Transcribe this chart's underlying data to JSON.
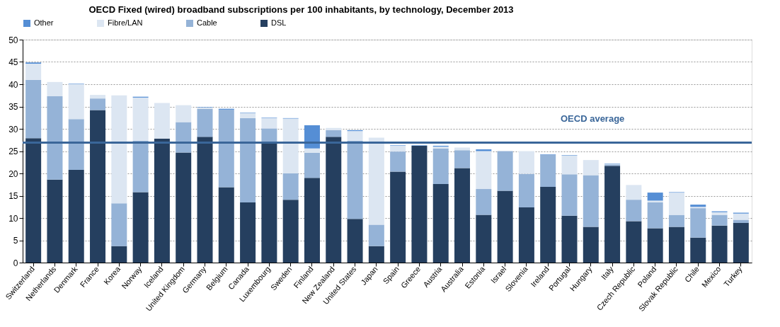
{
  "chart_data": {
    "type": "bar",
    "stacked": true,
    "title": "OECD Fixed (wired) broadband subscriptions per 100 inhabitants, by technology, December 2013",
    "categories": [
      "Switzerland",
      "Netherlands",
      "Denmark",
      "France",
      "Korea",
      "Norway",
      "Iceland",
      "United Kingdom",
      "Germany",
      "Belgium",
      "Canada",
      "Luxembourg",
      "Sweden",
      "Finland",
      "New Zealand",
      "United States",
      "Japan",
      "Spain",
      "Greece",
      "Austria",
      "Australia",
      "Estonia",
      "Israel",
      "Slovenia",
      "Ireland",
      "Portugal",
      "Hungary",
      "Italy",
      "Czech Republic",
      "Poland",
      "Slovak Republic",
      "Chile",
      "Mexico",
      "Turkey"
    ],
    "series": [
      {
        "name": "DSL",
        "color": "#253f5f",
        "values": [
          27.9,
          18.6,
          20.8,
          34.2,
          3.7,
          15.8,
          27.8,
          24.7,
          28.2,
          16.9,
          13.5,
          26.9,
          14.1,
          19.0,
          28.2,
          9.8,
          3.7,
          20.4,
          26.2,
          17.6,
          21.2,
          10.7,
          16.1,
          12.4,
          17.0,
          10.5,
          8.0,
          21.7,
          9.3,
          7.7,
          8.0,
          5.6,
          8.3,
          8.9
        ]
      },
      {
        "name": "Cable",
        "color": "#95b3d7",
        "values": [
          13.1,
          18.7,
          11.4,
          2.6,
          9.6,
          11.5,
          0,
          6.8,
          6.3,
          17.4,
          18.9,
          3.2,
          5.9,
          5.6,
          1.5,
          17.5,
          4.8,
          4.5,
          0,
          8.0,
          4.0,
          5.8,
          8.9,
          7.5,
          7.2,
          9.3,
          11.6,
          0.3,
          4.8,
          5.8,
          2.7,
          6.6,
          2.4,
          0.7
        ]
      },
      {
        "name": "Fibre/LAN",
        "color": "#dce6f2",
        "values": [
          3.6,
          3.2,
          7.8,
          0.8,
          24.2,
          9.7,
          8.0,
          3.8,
          0.3,
          0,
          1.1,
          2.3,
          12.3,
          1.0,
          0.5,
          2.2,
          19.5,
          1.3,
          0,
          0.4,
          0.6,
          8.5,
          0,
          5.1,
          0,
          4.2,
          3.4,
          0.1,
          3.3,
          0.4,
          5.0,
          0.3,
          0.6,
          1.4
        ]
      },
      {
        "name": "Other",
        "color": "#558ed5",
        "values": [
          0.3,
          0,
          0.1,
          0,
          0,
          0.2,
          0,
          0,
          0.1,
          0.2,
          0.1,
          0.1,
          0.1,
          5.2,
          0,
          0.2,
          0,
          0.1,
          0.1,
          0.2,
          0,
          0.4,
          0,
          0,
          0.1,
          0.1,
          0,
          0.1,
          0,
          1.8,
          0.1,
          0.5,
          0.2,
          0.2
        ]
      }
    ],
    "ylim": [
      0,
      50
    ],
    "yticks": [
      0,
      5,
      10,
      15,
      20,
      25,
      30,
      35,
      40,
      45,
      50
    ],
    "grid": "y",
    "legend": "top",
    "ref_lines": [
      {
        "axis": "y",
        "value": 26.9,
        "label": "OECD average",
        "color": "#3a6699"
      }
    ]
  }
}
